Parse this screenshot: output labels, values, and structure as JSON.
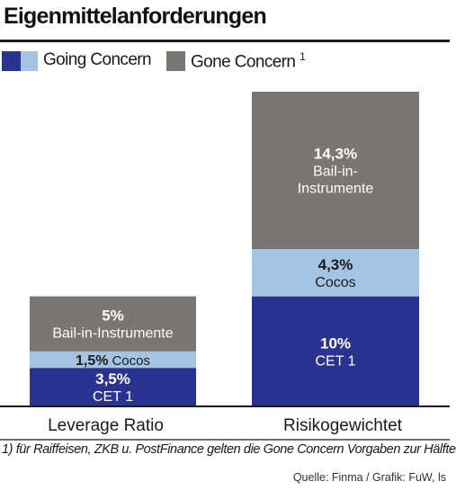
{
  "title": "Eigenmittelanforderungen",
  "legend": {
    "going_concern": "Going Concern",
    "gone_concern": "Gone Concern",
    "gone_concern_note": "1"
  },
  "colors": {
    "cet1": "#2b3390",
    "cocos": "#a3c4e2",
    "bail_in": "#7a7673",
    "text_dark": "#1a1a1a",
    "text_light": "#ffffff"
  },
  "chart_data": {
    "type": "bar",
    "stacked": true,
    "categories": [
      "Leverage Ratio",
      "Risikogewichtet"
    ],
    "series": [
      {
        "name": "CET 1",
        "values": [
          3.5,
          10
        ],
        "labels": [
          "3,5%",
          "10%"
        ],
        "color": "#2b3390"
      },
      {
        "name": "Cocos",
        "values": [
          1.5,
          4.3
        ],
        "labels": [
          "1,5%",
          "4,3%"
        ],
        "color": "#a3c4e2"
      },
      {
        "name": "Bail-in-Instrumente",
        "values": [
          5,
          14.3
        ],
        "labels": [
          "5%",
          "14,3%"
        ],
        "color": "#7a7673"
      }
    ],
    "ylim": [
      0,
      28.6
    ],
    "grid": false
  },
  "footnote": "1) für Raiffeisen, ZKB u. PostFinance gelten die Gone Concern Vorgaben zur Hälfte",
  "source": "Quelle: Finma / Grafik: FuW, ls"
}
